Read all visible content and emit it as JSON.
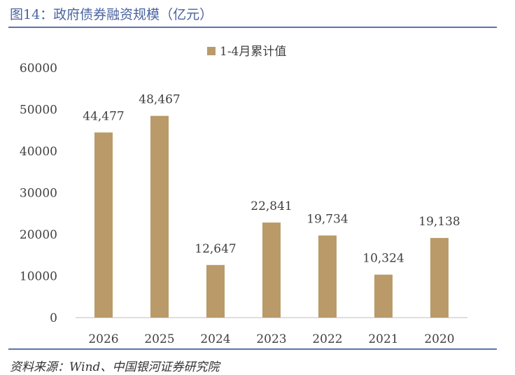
{
  "header": {
    "title": "图14：政府债券融资规模（亿元）"
  },
  "footer": {
    "source": "资料来源：Wind、中国银河证券研究院"
  },
  "chart_data": {
    "type": "bar",
    "categories": [
      "2026",
      "2025",
      "2024",
      "2023",
      "2022",
      "2021",
      "2020"
    ],
    "series": [
      {
        "name": "1-4月累计值",
        "values": [
          44477,
          48467,
          12647,
          22841,
          19734,
          10324,
          19138
        ],
        "labels": [
          "44,477",
          "48,467",
          "12,647",
          "22,841",
          "19,734",
          "10,324",
          "19,138"
        ],
        "color": "#b99a68"
      }
    ],
    "yticks": [
      "0",
      "10000",
      "20000",
      "30000",
      "40000",
      "50000",
      "60000"
    ],
    "ylim": [
      0,
      60000
    ],
    "legend_position": "top",
    "grid": false
  }
}
